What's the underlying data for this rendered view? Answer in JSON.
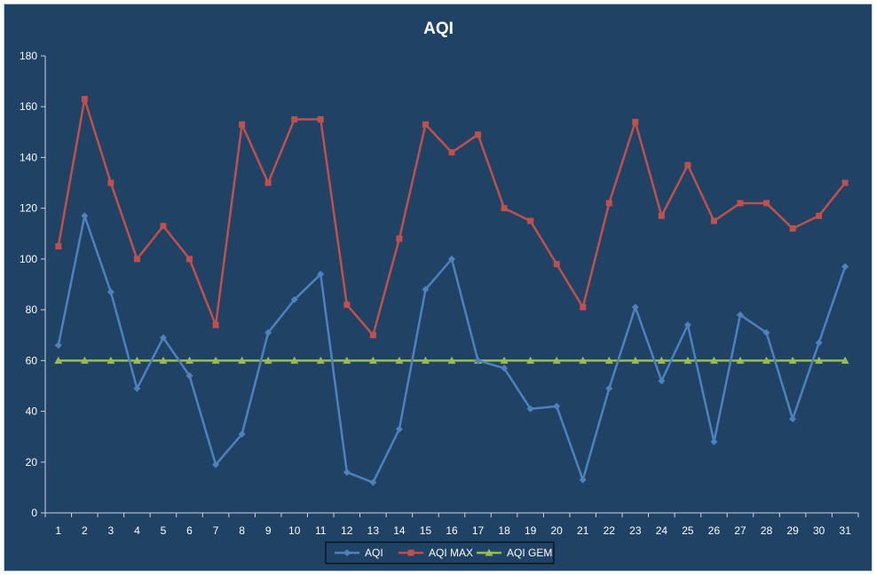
{
  "chart_data": {
    "type": "line",
    "title": "AQI",
    "xlabel": "",
    "ylabel": "",
    "ylim": [
      0,
      180
    ],
    "yticks": [
      0,
      20,
      40,
      60,
      80,
      100,
      120,
      140,
      160,
      180
    ],
    "grid": false,
    "legend_position": "bottom",
    "categories": [
      "1",
      "2",
      "3",
      "4",
      "5",
      "6",
      "7",
      "8",
      "9",
      "10",
      "11",
      "12",
      "13",
      "14",
      "15",
      "16",
      "17",
      "18",
      "19",
      "20",
      "21",
      "22",
      "23",
      "24",
      "25",
      "26",
      "27",
      "28",
      "29",
      "30",
      "31"
    ],
    "series": [
      {
        "name": "AQI",
        "color": "#4f81bd",
        "marker": "diamond",
        "values": [
          66,
          117,
          87,
          49,
          69,
          54,
          19,
          31,
          71,
          84,
          94,
          16,
          12,
          33,
          88,
          100,
          60,
          57,
          41,
          42,
          13,
          49,
          81,
          52,
          74,
          28,
          78,
          71,
          37,
          67,
          97
        ]
      },
      {
        "name": "AQI MAX",
        "color": "#c0504d",
        "marker": "square",
        "values": [
          105,
          163,
          130,
          100,
          113,
          100,
          74,
          153,
          130,
          155,
          155,
          82,
          70,
          108,
          153,
          142,
          149,
          120,
          115,
          98,
          81,
          122,
          154,
          117,
          137,
          115,
          122,
          122,
          112,
          117,
          130
        ]
      },
      {
        "name": "AQI GEM",
        "color": "#9bbb59",
        "marker": "triangle",
        "values": [
          60,
          60,
          60,
          60,
          60,
          60,
          60,
          60,
          60,
          60,
          60,
          60,
          60,
          60,
          60,
          60,
          60,
          60,
          60,
          60,
          60,
          60,
          60,
          60,
          60,
          60,
          60,
          60,
          60,
          60,
          60
        ]
      }
    ]
  }
}
